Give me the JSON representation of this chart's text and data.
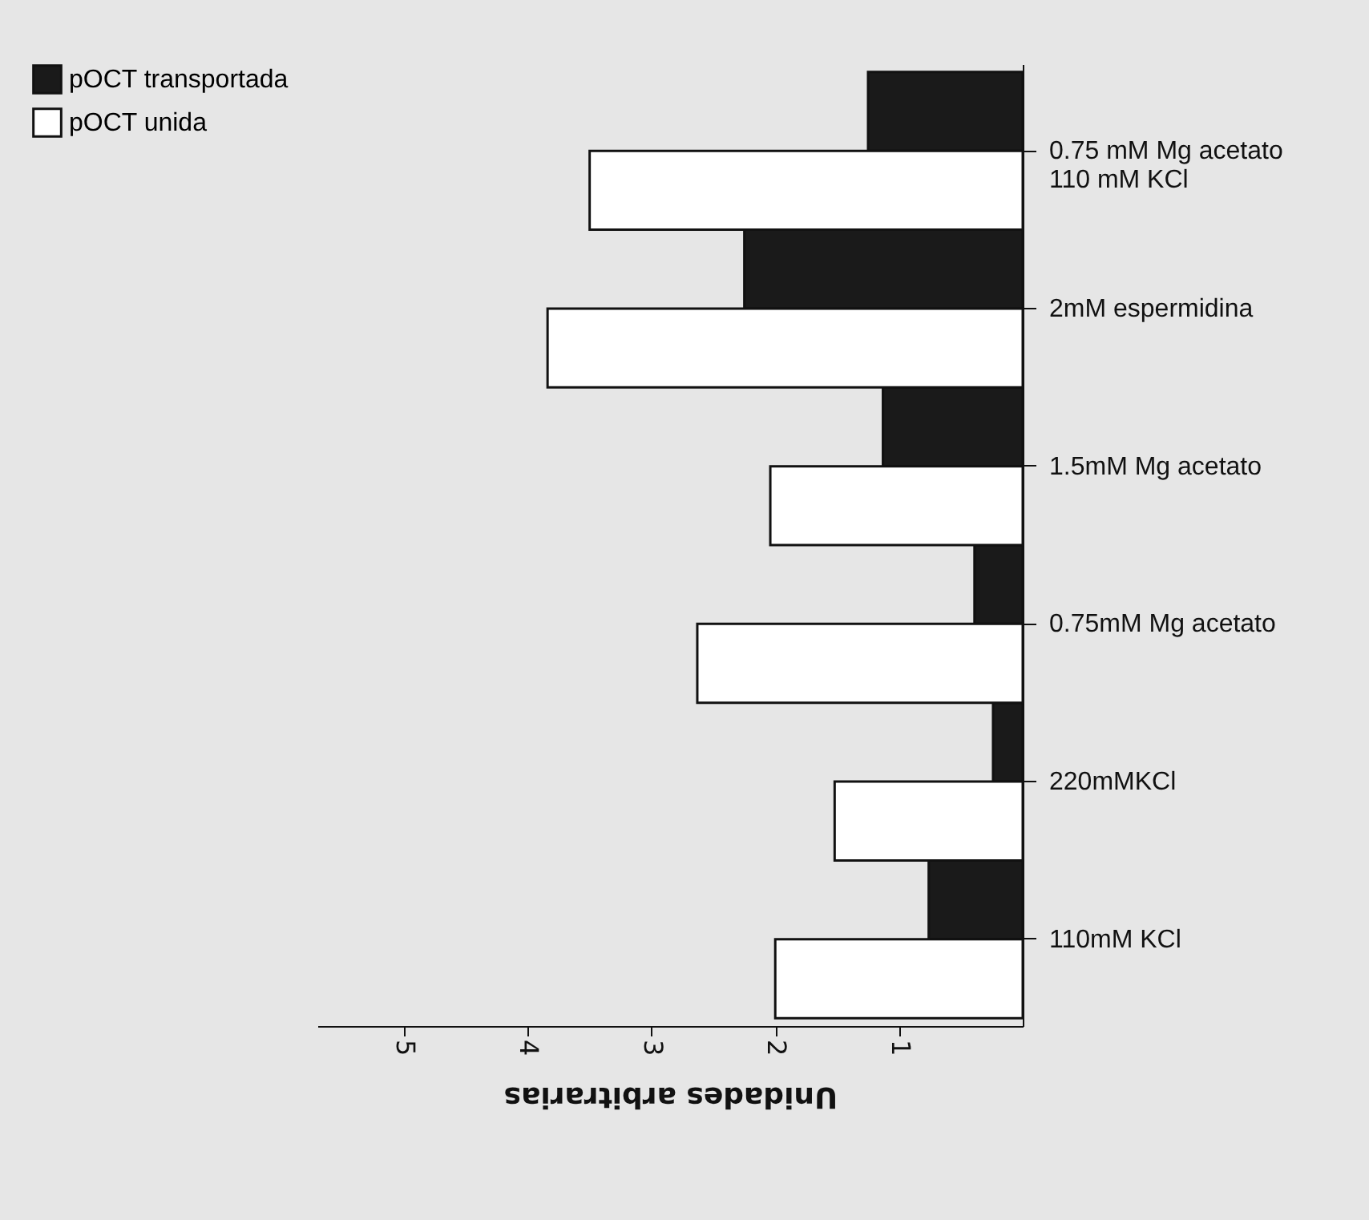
{
  "chart_data": {
    "type": "bar",
    "orientation": "horizontal",
    "xlabel": "Unidades arbitrarias",
    "categories": [
      "0.75 mM Mg acetato\n110 mM KCl",
      "2mM espermidina",
      "1.5mM Mg acetato",
      "0.75mM Mg acetato",
      "220mMKCl",
      "110mM KCl"
    ],
    "series": [
      {
        "name": "pOCT transportada",
        "color": "#1a1a1a",
        "values": [
          1.25,
          2.25,
          1.13,
          0.39,
          0.24,
          0.76
        ]
      },
      {
        "name": "pOCT unida",
        "color": "#ffffff",
        "values": [
          3.5,
          3.84,
          2.04,
          2.63,
          1.52,
          2.0
        ]
      }
    ],
    "xlim": [
      5.7,
      0
    ],
    "xticks": [
      1,
      2,
      3,
      4,
      5
    ],
    "legend": "left"
  }
}
